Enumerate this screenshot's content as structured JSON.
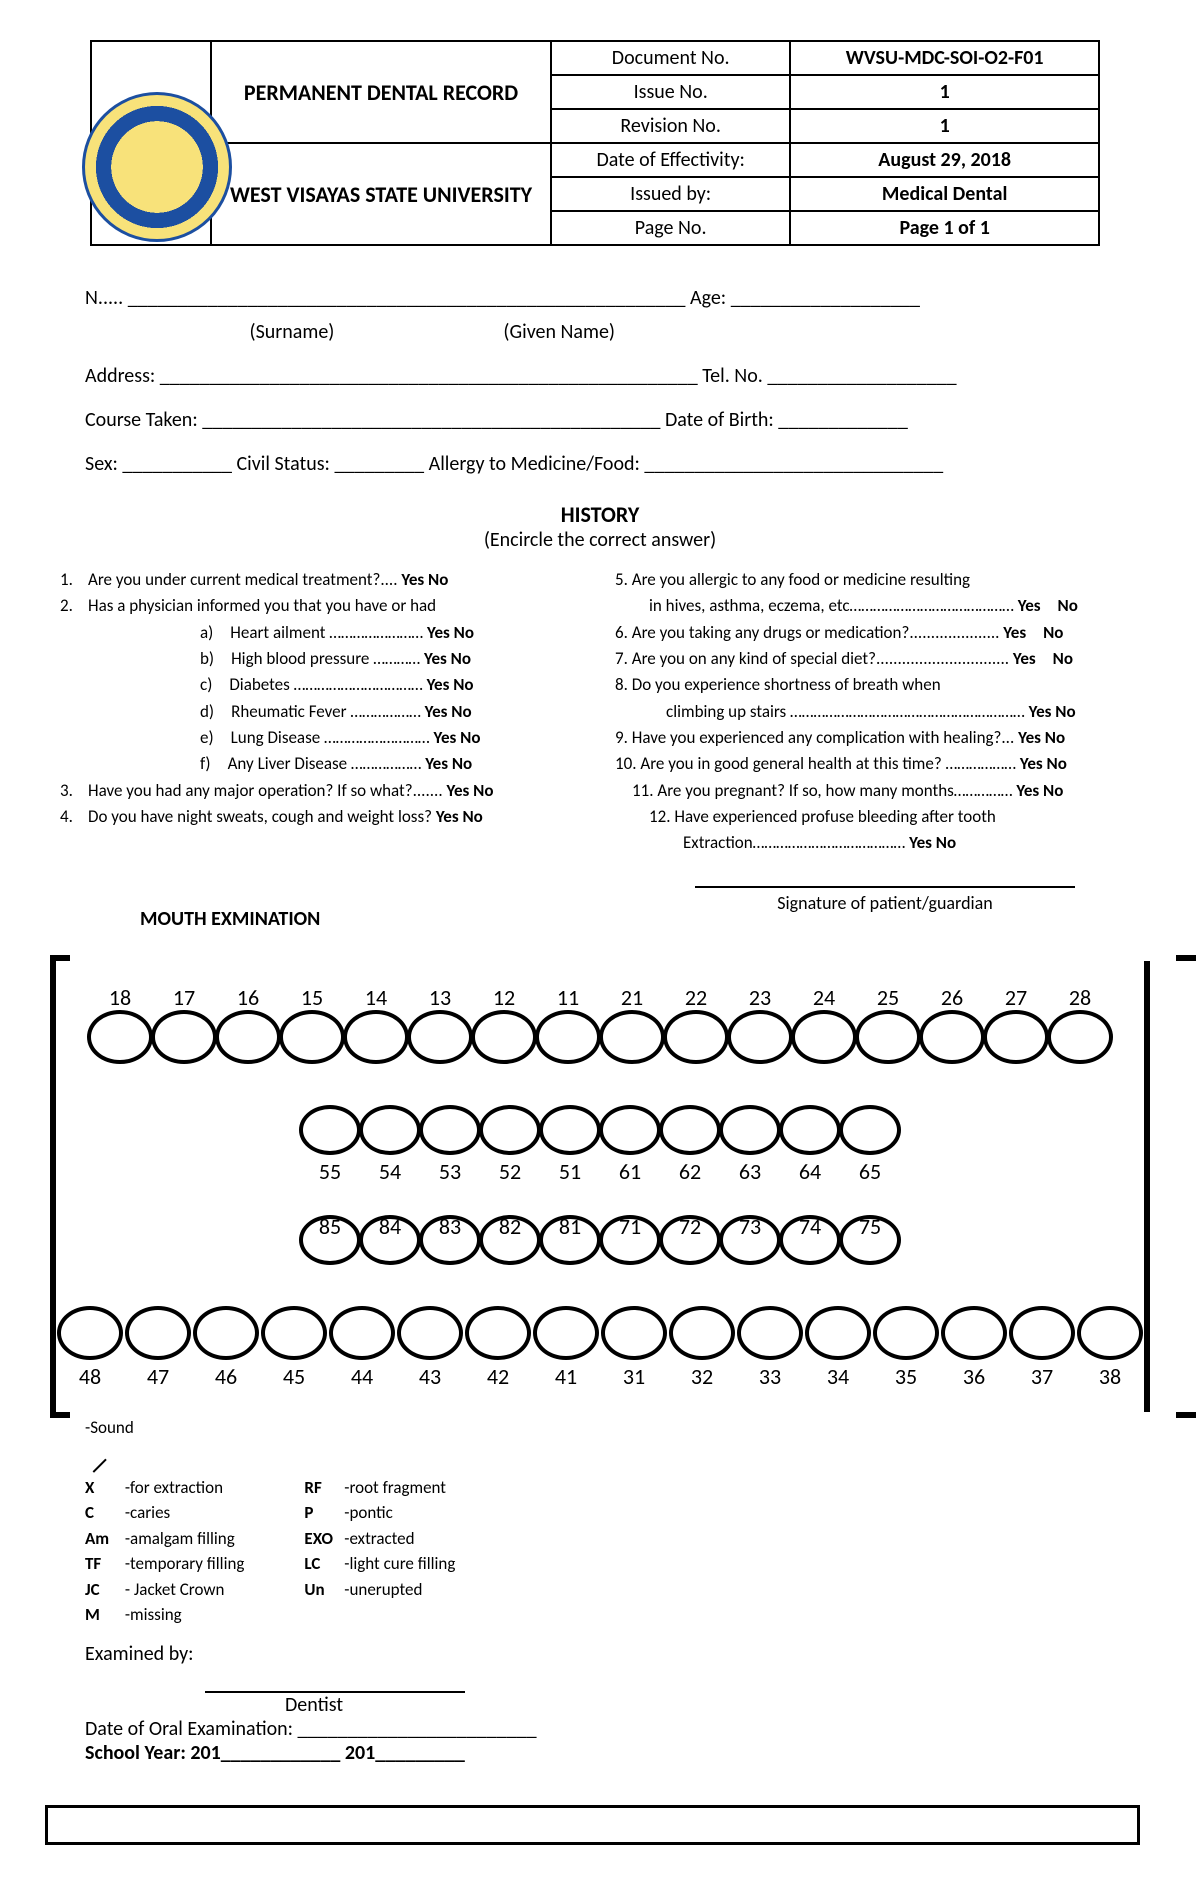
{
  "header": {
    "title1": "PERMANENT DENTAL RECORD",
    "title2": "WEST VISAYAS STATE UNIVERSITY",
    "rows": [
      {
        "label": "Document No.",
        "value": "WVSU-MDC-SOI-O2-F01"
      },
      {
        "label": "Issue No.",
        "value": "1"
      },
      {
        "label": "Revision No.",
        "value": "1"
      },
      {
        "label": "Date of Effectivity:",
        "value": "August 29, 2018"
      },
      {
        "label": "Issued by:",
        "value": "Medical Dental"
      },
      {
        "label": "Page No.",
        "value": "Page 1 of 1"
      }
    ]
  },
  "form": {
    "name_prefix": "N....",
    "name_line": "________________________________________________________",
    "age_label": "Age:",
    "age_line": "___________________",
    "surname": "(Surname)",
    "given": "(Given Name)",
    "address_label": "Address:",
    "address_line": "______________________________________________________",
    "tel_label": "Tel. No.",
    "tel_line": "___________________",
    "course_label": "Course Taken:",
    "course_line": "______________________________________________",
    "dob_label": "Date of Birth:",
    "dob_line": "_____________",
    "sex_label": "Sex:",
    "sex_line": "___________",
    "civil_label": "Civil Status:",
    "civil_line": "_________",
    "allergy_label": "Allergy to Medicine/Food:",
    "allergy_line": "______________________________"
  },
  "history": {
    "title": "HISTORY",
    "sub": "(Encircle the correct answer)",
    "left": [
      {
        "n": "1.",
        "t": "Are you under current medical treatment?.... ",
        "yn": "Yes  No"
      },
      {
        "n": "2.",
        "t": "Has a physician informed you that you have or had",
        "yn": ""
      },
      {
        "n": "",
        "sub": true,
        "t": "a) Heart ailment ……………………",
        "yn": "Yes  No"
      },
      {
        "n": "",
        "sub": true,
        "t": "b) High blood pressure …………",
        "yn": "Yes  No"
      },
      {
        "n": "",
        "sub": true,
        "t": "c) Diabetes ……………………………",
        "yn": "Yes  No"
      },
      {
        "n": "",
        "sub": true,
        "t": "d) Rheumatic Fever ………………",
        "yn": "Yes  No"
      },
      {
        "n": "",
        "sub": true,
        "t": "e) Lung Disease ………………………",
        "yn": "Yes  No"
      },
      {
        "n": "",
        "sub": true,
        "t": "f) Any Liver Disease ………………",
        "yn": "Yes  No"
      },
      {
        "n": "3.",
        "t": "Have you had any major operation? If so what?....... ",
        "yn": "Yes  No"
      },
      {
        "n": "4.",
        "t": "Do you have night sweats, cough and  weight loss? ",
        "yn": "Yes  No"
      }
    ],
    "right": [
      {
        "t": "5. Are you allergic to any food or medicine resulting",
        "yn": ""
      },
      {
        "t": "  in hives, asthma, eczema, etc……………………………………",
        "yn": "Yes No"
      },
      {
        "t": "6. Are you taking any drugs or medication?.....................",
        "yn": "Yes No"
      },
      {
        "t": "7. Are you on any kind of special diet?...............................",
        "yn": "Yes No"
      },
      {
        "t": "8. Do you experience shortness of breath when",
        "yn": ""
      },
      {
        "t": "   climbing up stairs ……………………………………………………",
        "yn": " Yes  No"
      },
      {
        "t": "9. Have you experienced any complication with healing?...",
        "yn": "Yes No"
      },
      {
        "t": "10. Are you in good general health at this time? ………………",
        "yn": " Yes No"
      },
      {
        "t": " 11. Are you pregnant? If so, how many months……………",
        "yn": " Yes  No"
      },
      {
        "t": "  12. Have experienced profuse bleeding after tooth",
        "yn": ""
      },
      {
        "t": "    Extraction…………………………………",
        "yn": "Yes  No"
      }
    ]
  },
  "mouth": {
    "title": "MOUTH EXMINATION",
    "sig_label": "Signature of patient/guardian",
    "row1": [
      "18",
      "17",
      "16",
      "15",
      "14",
      "13",
      "12",
      "11",
      "21",
      "22",
      "23",
      "24",
      "25",
      "26",
      "27",
      "28"
    ],
    "row2": [
      "55",
      "54",
      "53",
      "52",
      "51",
      "61",
      "62",
      "63",
      "64",
      "65"
    ],
    "row3": [
      "85",
      "84",
      "83",
      "82",
      "81",
      "71",
      "72",
      "73",
      "74",
      "75"
    ],
    "row4": [
      "48",
      "47",
      "46",
      "45",
      "44",
      "43",
      "42",
      "41",
      "31",
      "32",
      "33",
      "34",
      "35",
      "36",
      "37",
      "38"
    ],
    "sound": "-Sound"
  },
  "legend": {
    "col1": [
      {
        "k": "X",
        "v": "-for extraction"
      },
      {
        "k": "C",
        "v": "-caries"
      },
      {
        "k": "Am",
        "v": "-amalgam filling"
      },
      {
        "k": "TF",
        "v": "-temporary filling"
      },
      {
        "k": "JC",
        "v": "- Jacket Crown"
      },
      {
        "k": "M",
        "v": "-missing"
      }
    ],
    "col2": [
      {
        "k": "RF",
        "v": "-root fragment"
      },
      {
        "k": "P",
        "v": "-pontic"
      },
      {
        "k": "EXO",
        "v": "-extracted"
      },
      {
        "k": "LC",
        "v": "-light cure filling"
      },
      {
        "k": "Un",
        "v": "-unerupted"
      }
    ]
  },
  "exam": {
    "by": "Examined by:",
    "dentist": "Dentist",
    "date": "Date of Oral Examination: ________________________",
    "sy": "School Year: 201____________ 201_________"
  }
}
